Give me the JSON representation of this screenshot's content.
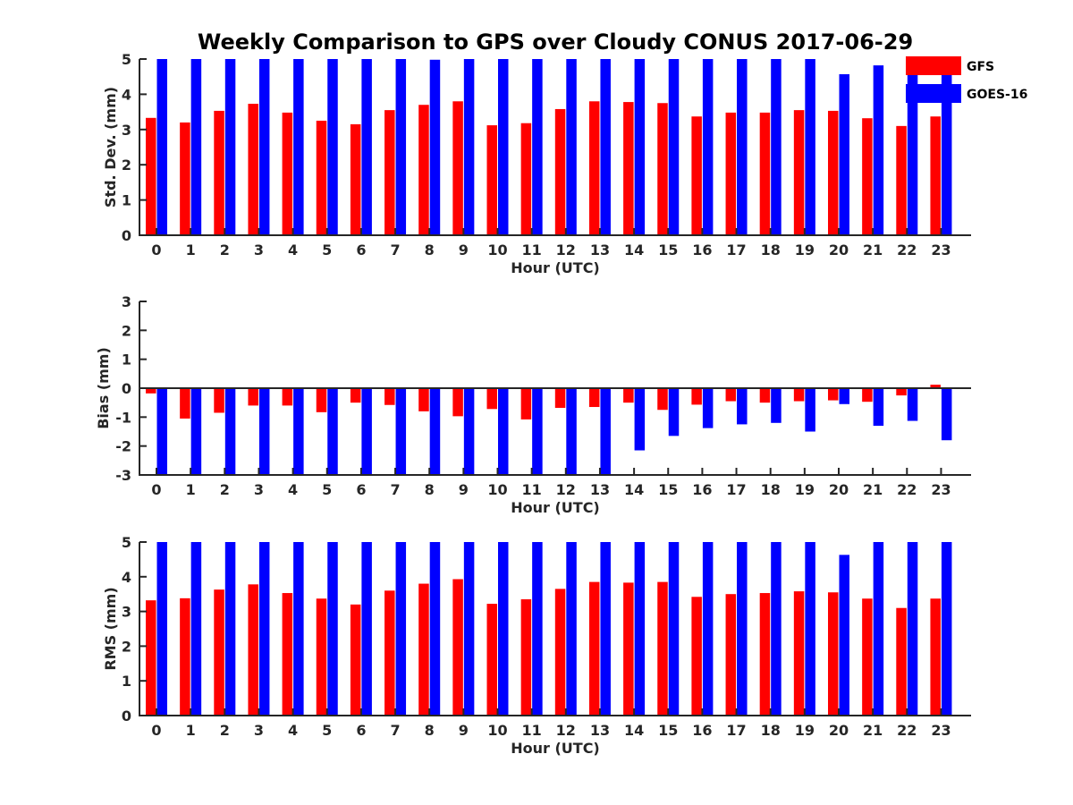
{
  "chart_data": {
    "type": "bar",
    "title": "Weekly Comparison to GPS over Cloudy CONUS 2017-06-29",
    "categories": [
      "0",
      "1",
      "2",
      "3",
      "4",
      "5",
      "6",
      "7",
      "8",
      "9",
      "10",
      "11",
      "12",
      "13",
      "14",
      "15",
      "16",
      "17",
      "18",
      "19",
      "20",
      "21",
      "22",
      "23"
    ],
    "legend": {
      "placement": "top-right",
      "entries": [
        {
          "name": "GFS",
          "color": "#ff0000"
        },
        {
          "name": "GOES-16",
          "color": "#0000ff"
        }
      ]
    },
    "panels": [
      {
        "ylabel": "Std. Dev. (mm)",
        "xlabel": "Hour (UTC)",
        "ylim": [
          0,
          5
        ],
        "yticks": [
          "0",
          "1",
          "2",
          "3",
          "4",
          "5"
        ],
        "zero_line": false,
        "series": [
          {
            "name": "GFS",
            "color": "#ff0000",
            "values": [
              3.33,
              3.2,
              3.53,
              3.73,
              3.48,
              3.25,
              3.15,
              3.55,
              3.7,
              3.8,
              3.12,
              3.18,
              3.58,
              3.8,
              3.78,
              3.75,
              3.37,
              3.48,
              3.48,
              3.55,
              3.53,
              3.32,
              3.1,
              3.37
            ]
          },
          {
            "name": "GOES-16",
            "color": "#0000ff",
            "values": [
              5,
              5,
              5,
              5,
              5,
              5,
              5,
              5,
              4.98,
              5,
              5,
              5,
              5,
              5,
              5,
              5,
              5,
              5,
              5,
              5,
              4.57,
              4.82,
              4.92,
              4.9
            ]
          }
        ]
      },
      {
        "ylabel": "Bias (mm)",
        "xlabel": "Hour (UTC)",
        "ylim": [
          -3,
          3
        ],
        "yticks": [
          "-3",
          "-2",
          "-1",
          "0",
          "1",
          "2",
          "3"
        ],
        "zero_line": true,
        "series": [
          {
            "name": "GFS",
            "color": "#ff0000",
            "values": [
              -0.18,
              -1.05,
              -0.85,
              -0.6,
              -0.6,
              -0.83,
              -0.5,
              -0.58,
              -0.8,
              -0.97,
              -0.72,
              -1.08,
              -0.68,
              -0.65,
              -0.5,
              -0.75,
              -0.57,
              -0.45,
              -0.5,
              -0.45,
              -0.42,
              -0.47,
              -0.25,
              0.12
            ]
          },
          {
            "name": "GOES-16",
            "color": "#0000ff",
            "values": [
              -3,
              -3,
              -3,
              -3,
              -3,
              -3,
              -3,
              -3,
              -3,
              -3,
              -3,
              -3,
              -3,
              -3,
              -2.15,
              -1.65,
              -1.38,
              -1.25,
              -1.2,
              -1.5,
              -0.55,
              -1.3,
              -1.13,
              -1.8
            ]
          }
        ]
      },
      {
        "ylabel": "RMS (mm)",
        "xlabel": "Hour (UTC)",
        "ylim": [
          0,
          5
        ],
        "yticks": [
          "0",
          "1",
          "2",
          "3",
          "4",
          "5"
        ],
        "zero_line": false,
        "series": [
          {
            "name": "GFS",
            "color": "#ff0000",
            "values": [
              3.32,
              3.38,
              3.63,
              3.78,
              3.53,
              3.37,
              3.2,
              3.6,
              3.8,
              3.93,
              3.22,
              3.35,
              3.65,
              3.85,
              3.83,
              3.85,
              3.42,
              3.5,
              3.53,
              3.58,
              3.55,
              3.37,
              3.1,
              3.37
            ]
          },
          {
            "name": "GOES-16",
            "color": "#0000ff",
            "values": [
              5,
              5,
              5,
              5,
              5,
              5,
              5,
              5,
              5,
              5,
              5,
              5,
              5,
              5,
              5,
              5,
              5,
              5,
              5,
              5,
              4.63,
              5,
              5,
              5
            ]
          }
        ]
      }
    ]
  }
}
